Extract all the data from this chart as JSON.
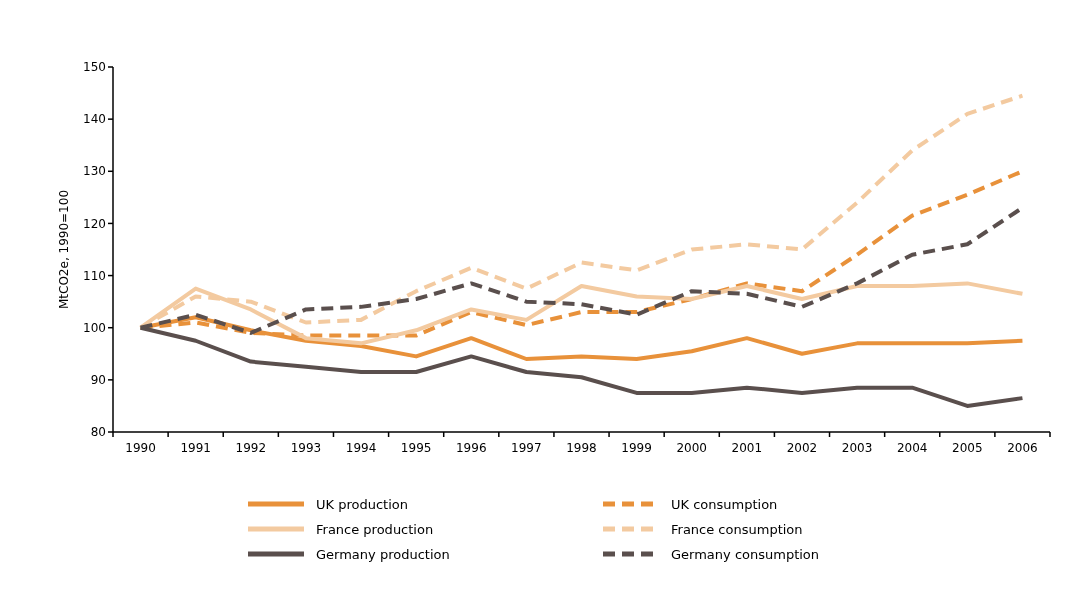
{
  "chart_data": {
    "type": "line",
    "ylabel": "MtCO2e, 1990=100",
    "categories": [
      "1990",
      "1991",
      "1992",
      "1993",
      "1994",
      "1995",
      "1996",
      "1997",
      "1998",
      "1999",
      "2000",
      "2001",
      "2002",
      "2003",
      "2004",
      "2005",
      "2006"
    ],
    "ylim": [
      80,
      150
    ],
    "yticks": [
      80,
      90,
      100,
      110,
      120,
      130,
      140,
      150
    ],
    "grid": false,
    "legend": "bottom",
    "series": [
      {
        "name": "UK production",
        "color": "#e8913a",
        "line_style": "solid",
        "values": [
          100,
          102,
          99.5,
          97.5,
          96.5,
          94.5,
          98,
          94,
          94.5,
          94,
          95.5,
          98,
          95,
          97,
          97,
          97,
          97.5
        ]
      },
      {
        "name": "UK consumption",
        "color": "#e8913a",
        "line_style": "dashed",
        "values": [
          100,
          101,
          99,
          98.5,
          98.5,
          98.5,
          103,
          100.5,
          103,
          103,
          105.5,
          108.5,
          107,
          114,
          121.5,
          125.5,
          130
        ]
      },
      {
        "name": "France production",
        "color": "#f3caa0",
        "line_style": "solid",
        "values": [
          100,
          107.5,
          103.5,
          98,
          97,
          99.5,
          103.5,
          101.5,
          108,
          106,
          105.5,
          108,
          105.5,
          108,
          108,
          108.5,
          106.5
        ]
      },
      {
        "name": "France consumption",
        "color": "#f3caa0",
        "line_style": "dashed",
        "values": [
          100,
          106,
          105,
          101,
          101.5,
          107,
          111.5,
          107.5,
          112.5,
          111,
          115,
          116,
          115,
          124,
          134,
          141,
          144.5
        ]
      },
      {
        "name": "Germany production",
        "color": "#5a4f4d",
        "line_style": "solid",
        "values": [
          100,
          97.5,
          93.5,
          92.5,
          91.5,
          91.5,
          94.5,
          91.5,
          90.5,
          87.5,
          87.5,
          88.5,
          87.5,
          88.5,
          88.5,
          85,
          86.5
        ]
      },
      {
        "name": "Germany consumption",
        "color": "#5a4f4d",
        "line_style": "dashed",
        "values": [
          100,
          102.5,
          99,
          103.5,
          104,
          105.5,
          108.5,
          105,
          104.5,
          102.5,
          107,
          106.5,
          104,
          108.5,
          114,
          116,
          123
        ]
      }
    ]
  }
}
